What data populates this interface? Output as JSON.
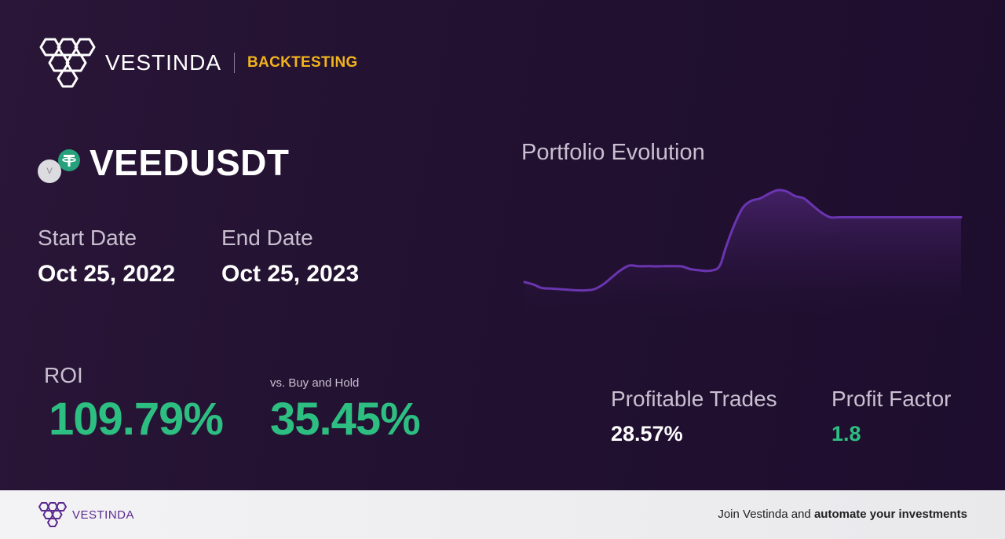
{
  "brand": {
    "name": "VESTINDA",
    "section": "BACKTESTING"
  },
  "pair": {
    "name": "VEEDUSDT",
    "base_icon_letter": "V",
    "base_icon": "veed-coin-icon",
    "quote_icon": "tether-coin-icon"
  },
  "dates": {
    "start_label": "Start Date",
    "start_value": "Oct 25, 2022",
    "end_label": "End Date",
    "end_value": "Oct 25, 2023"
  },
  "roi": {
    "label": "ROI",
    "value": "109.79%",
    "vs_label": "vs. Buy and Hold",
    "vs_value": "35.45%"
  },
  "stats": {
    "profitable_trades_label": "Profitable Trades",
    "profitable_trades_value": "28.57%",
    "profit_factor_label": "Profit Factor",
    "profit_factor_value": "1.8"
  },
  "chart_data": {
    "type": "area",
    "title": "Portfolio Evolution",
    "x": [
      0,
      2,
      4,
      6,
      8,
      10,
      12,
      14,
      16,
      18,
      20,
      22,
      24,
      26,
      28,
      29,
      30,
      32,
      34,
      36,
      38,
      40,
      42,
      44,
      45,
      46,
      48,
      50,
      52,
      54,
      56,
      58,
      60,
      62,
      64,
      66,
      68,
      70,
      72,
      74,
      76,
      77,
      78,
      79,
      80,
      82,
      84,
      86,
      88,
      90,
      92,
      94,
      96,
      98,
      100
    ],
    "values": [
      22,
      20,
      17,
      16.5,
      16,
      15.5,
      15,
      15,
      16,
      20,
      26,
      32,
      36,
      35.5,
      35.5,
      35.5,
      35.3,
      35.5,
      35.5,
      35.3,
      33,
      32,
      31.5,
      33,
      38,
      50,
      70,
      85,
      91,
      93,
      97,
      100,
      99,
      95,
      93,
      87,
      81,
      77,
      77,
      77,
      77,
      77,
      77,
      77,
      77,
      77,
      77,
      77,
      77,
      77,
      77,
      77,
      77,
      77,
      77
    ],
    "ylim": [
      0,
      100
    ],
    "line_color": "#6a35b0",
    "fill_color": "#3a1d5c",
    "grid": false,
    "legend": "none"
  },
  "footer": {
    "brand_name": "VESTINDA",
    "cta_prefix": "Join Vestinda and ",
    "cta_bold": "automate your investments"
  },
  "colors": {
    "accent": "#f2b31c",
    "positive": "#2dbf82",
    "brand_purple": "#5b2a8e"
  }
}
